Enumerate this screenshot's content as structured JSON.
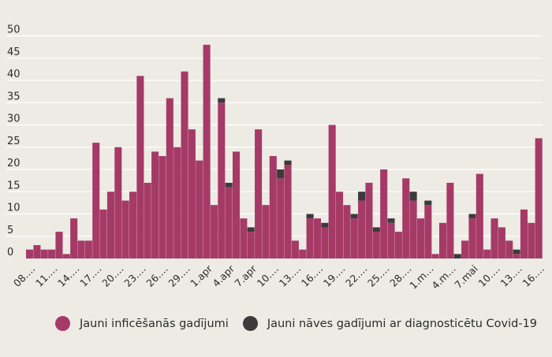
{
  "colors": {
    "background": "#edebe4",
    "infections": "#a63a67",
    "deaths": "#3d3a3b",
    "gridline": "#ffffff",
    "text": "#2b2b2b"
  },
  "chart_data": {
    "type": "bar",
    "stacked": true,
    "title": "",
    "xlabel": "",
    "ylabel": "",
    "ylim": [
      0,
      50
    ],
    "yticks": [
      0,
      5,
      10,
      15,
      20,
      25,
      30,
      35,
      40,
      45,
      50
    ],
    "grid": true,
    "legend_position": "bottom",
    "categories": [
      "08.…",
      "09.…",
      "10.…",
      "11.…",
      "12.…",
      "13.…",
      "14.…",
      "15.…",
      "16.…",
      "17.…",
      "18.…",
      "19.…",
      "20.…",
      "21.…",
      "22.…",
      "23.…",
      "24.…",
      "25.…",
      "26.…",
      "27.…",
      "28.…",
      "29.…",
      "30.…",
      "31.…",
      "1.apr",
      "2.apr",
      "3.apr",
      "4.apr",
      "5.apr",
      "6.apr",
      "7.apr",
      "8.apr",
      "9.apr",
      "10.…",
      "11.…",
      "12.…",
      "13.…",
      "14.…",
      "15.…",
      "16.…",
      "17.…",
      "18.…",
      "19.…",
      "20.…",
      "21.…",
      "22.…",
      "23.…",
      "24.…",
      "25.…",
      "26.…",
      "27.…",
      "28.…",
      "29.…",
      "30.…",
      "1.m…",
      "2.m…",
      "3.m…",
      "4.m…",
      "5.m…",
      "6.m…",
      "7.mai",
      "8.mai",
      "9.mai",
      "10.…",
      "11.…",
      "12.…",
      "13.…",
      "14.…",
      "15.…",
      "16.…"
    ],
    "xtick_labels": [
      "08.…",
      "11.…",
      "14.…",
      "17.…",
      "20.…",
      "23.…",
      "26.…",
      "29.…",
      "1.apr",
      "4.apr",
      "7.apr",
      "10.…",
      "13.…",
      "16.…",
      "19.…",
      "22.…",
      "25.…",
      "28.…",
      "1.m…",
      "4.m…",
      "7.mai",
      "10.…",
      "13.…",
      "16.…"
    ],
    "series": [
      {
        "name": "Jauni inficēšanās gadījumi",
        "values": [
          2,
          3,
          2,
          2,
          6,
          1,
          9,
          4,
          4,
          26,
          11,
          15,
          25,
          13,
          15,
          41,
          17,
          24,
          23,
          36,
          25,
          42,
          29,
          22,
          48,
          12,
          35,
          16,
          24,
          9,
          6,
          29,
          12,
          23,
          18,
          21,
          4,
          2,
          9,
          9,
          7,
          30,
          15,
          12,
          9,
          13,
          17,
          6,
          20,
          8,
          6,
          18,
          13,
          9,
          12,
          1,
          8,
          17,
          0,
          4,
          9,
          19,
          2,
          9,
          7,
          4,
          1,
          11,
          8,
          27
        ]
      },
      {
        "name": "Jauni nāves gadījumi ar diagnosticētu Covid-19",
        "values": [
          0,
          0,
          0,
          0,
          0,
          0,
          0,
          0,
          0,
          0,
          0,
          0,
          0,
          0,
          0,
          0,
          0,
          0,
          0,
          0,
          0,
          0,
          0,
          0,
          0,
          0,
          1,
          1,
          0,
          0,
          1,
          0,
          0,
          0,
          2,
          1,
          0,
          0,
          1,
          0,
          1,
          0,
          0,
          0,
          1,
          2,
          0,
          1,
          0,
          1,
          0,
          0,
          2,
          0,
          1,
          0,
          0,
          0,
          1,
          0,
          1,
          0,
          0,
          0,
          0,
          0,
          1,
          0,
          0,
          0
        ]
      }
    ]
  }
}
